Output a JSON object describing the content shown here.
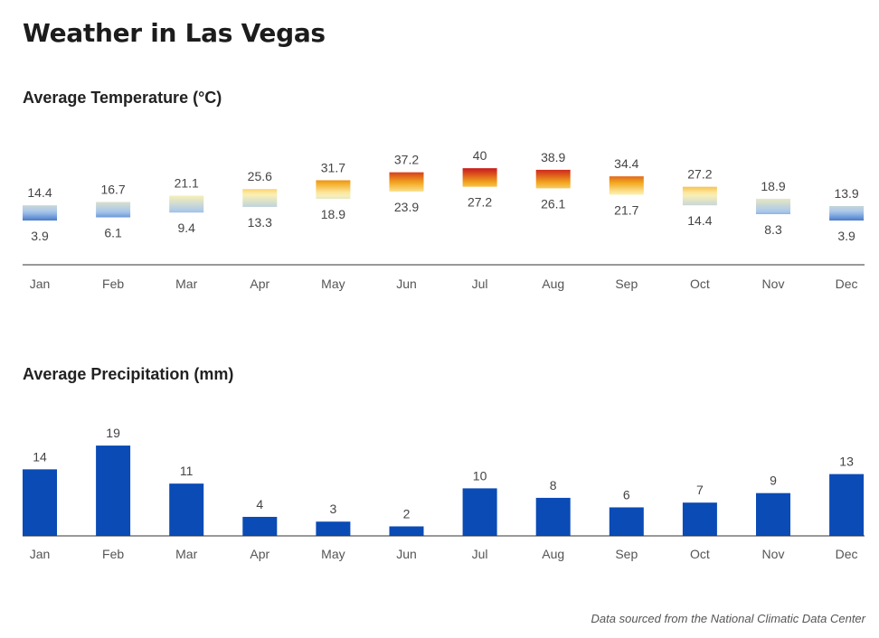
{
  "title": "Weather in Las Vegas",
  "footnote": "Data sourced from the National Climatic Data Center",
  "chart_data": [
    {
      "type": "bar",
      "subtype": "range",
      "title": "Average Temperature (°C)",
      "categories": [
        "Jan",
        "Feb",
        "Mar",
        "Apr",
        "May",
        "Jun",
        "Jul",
        "Aug",
        "Sep",
        "Oct",
        "Nov",
        "Dec"
      ],
      "series": [
        {
          "name": "",
          "values_high": [
            14.4,
            16.7,
            21.1,
            25.6,
            31.7,
            37.2,
            40,
            38.9,
            34.4,
            27.2,
            18.9,
            13.9
          ],
          "values_low": [
            3.9,
            6.1,
            9.4,
            13.3,
            18.9,
            23.9,
            27.2,
            26.1,
            21.7,
            14.4,
            8.3,
            3.9
          ]
        }
      ],
      "color_scale": {
        "cold": "#0a4bb5",
        "cool": "#a9c7ec",
        "mild": "#fdf2b3",
        "warm": "#f3a81e",
        "hot": "#c9181b"
      },
      "grid": false
    },
    {
      "type": "bar",
      "title": "Average Precipitation (mm)",
      "categories": [
        "Jan",
        "Feb",
        "Mar",
        "Apr",
        "May",
        "Jun",
        "Jul",
        "Aug",
        "Sep",
        "Oct",
        "Nov",
        "Dec"
      ],
      "values": [
        14,
        19,
        11,
        4,
        3,
        2,
        10,
        8,
        6,
        7,
        9,
        13
      ],
      "color": "#0a4bb5",
      "grid": false
    }
  ]
}
